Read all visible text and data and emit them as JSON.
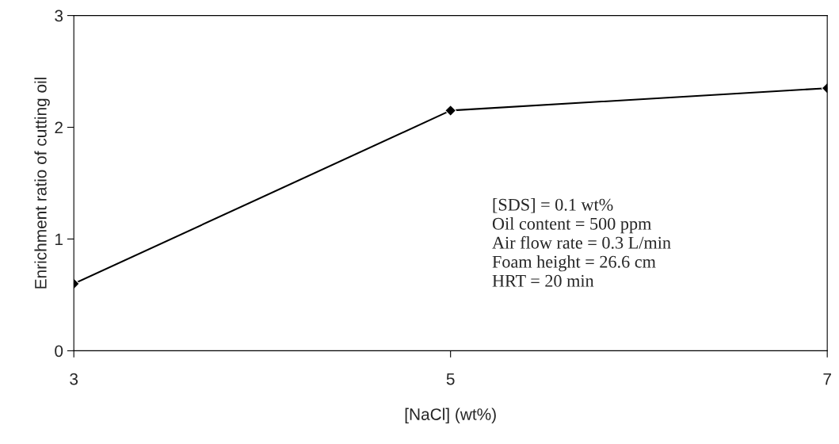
{
  "chart_data": {
    "type": "line",
    "xlabel": "[NaCl] (wt%)",
    "ylabel": "Enrichment ratio of cutting oil",
    "x": [
      3,
      5,
      7
    ],
    "series": [
      {
        "color": "#000000",
        "values": [
          0.6,
          2.15,
          2.35
        ]
      }
    ],
    "xlim": [
      3,
      7
    ],
    "xticks": [
      3,
      5,
      7
    ],
    "ylim": [
      0,
      3
    ],
    "yticks": [
      0,
      1,
      2,
      3
    ],
    "marker": "diamond",
    "line_style": "solid",
    "grid": false,
    "legend": false,
    "annotations": [
      "[SDS] = 0.1 wt%\nOil content = 500 ppm\nAir flow rate = 0.3 L/min\nFoam height = 26.6 cm\nHRT = 20 min"
    ]
  }
}
